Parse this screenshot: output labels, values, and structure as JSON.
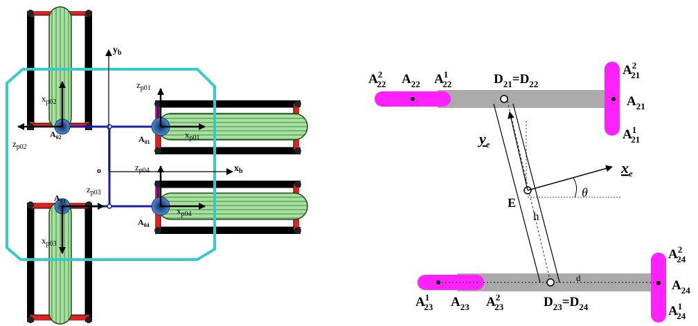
{
  "left_diagram": {
    "axes": {
      "yb": "y",
      "yb_sub": "b",
      "xb": "x",
      "xb_sub": "b",
      "origin": "o"
    },
    "points": {
      "a01": {
        "base": "A",
        "sub": "01"
      },
      "a02": {
        "base": "A",
        "sub": "02"
      },
      "a03": {
        "base": "A",
        "sub": "03"
      },
      "a04": {
        "base": "A",
        "sub": "04"
      }
    },
    "frame_labels": {
      "zp01": {
        "base": "z",
        "sub": "p01"
      },
      "zp02": {
        "base": "z",
        "sub": "p02"
      },
      "zp03": {
        "base": "z",
        "sub": "p03"
      },
      "zp04": {
        "base": "z",
        "sub": "p04"
      },
      "xp01": {
        "base": "x",
        "sub": "p01"
      },
      "xp02": {
        "base": "x",
        "sub": "p02"
      },
      "xp03": {
        "base": "x",
        "sub": "p03"
      },
      "xp04": {
        "base": "x",
        "sub": "p04"
      }
    },
    "colors": {
      "body_outline": "#33cccc",
      "link": "#1a1aaa",
      "tread": "#99dd99",
      "rail": "#000000",
      "red": "#dd2222",
      "hub": "#3377cc"
    }
  },
  "right_diagram": {
    "top_points": {
      "a22_2": {
        "base": "A",
        "sub": "22",
        "sup": "2"
      },
      "a22": {
        "base": "A",
        "sub": "22"
      },
      "a22_1": {
        "base": "A",
        "sub": "22",
        "sup": "1"
      },
      "d21": {
        "base": "D",
        "sub": "21"
      },
      "eq1": "=",
      "d22": {
        "base": "D",
        "sub": "22"
      },
      "a21_2": {
        "base": "A",
        "sub": "21",
        "sup": "2"
      },
      "a21": {
        "base": "A",
        "sub": "21"
      },
      "a21_1": {
        "base": "A",
        "sub": "21",
        "sup": "1"
      }
    },
    "bottom_points": {
      "a23_1": {
        "base": "A",
        "sub": "23",
        "sup": "1"
      },
      "a23": {
        "base": "A",
        "sub": "23"
      },
      "a23_2": {
        "base": "A",
        "sub": "23",
        "sup": "2"
      },
      "d23": {
        "base": "D",
        "sub": "23"
      },
      "eq2": "=",
      "d24": {
        "base": "D",
        "sub": "24"
      },
      "a24_2": {
        "base": "A",
        "sub": "24",
        "sup": "2"
      },
      "a24": {
        "base": "A",
        "sub": "24"
      },
      "a24_1": {
        "base": "A",
        "sub": "24",
        "sup": "1"
      }
    },
    "ye": {
      "base": "y",
      "sub": "e"
    },
    "xe": {
      "base": "x",
      "sub": "e"
    },
    "e_label": "E",
    "theta": "θ",
    "h_label": "h",
    "d_label": "d",
    "colors": {
      "beam": "#aaaaaa",
      "magenta": "#ff22ff"
    }
  }
}
